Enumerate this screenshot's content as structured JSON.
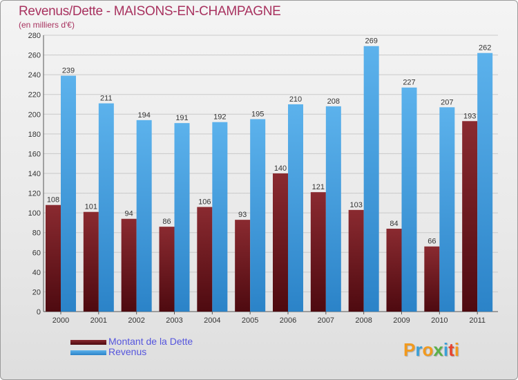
{
  "title": "Revenus/Dette - MAISONS-EN-CHAMPAGNE",
  "subtitle": "(en milliers d'€)",
  "chart_data": {
    "type": "bar",
    "title": "Revenus/Dette - MAISONS-EN-CHAMPAGNE",
    "ylabel": "(en milliers d'€)",
    "xlabel": "",
    "categories": [
      "2000",
      "2001",
      "2002",
      "2003",
      "2004",
      "2005",
      "2006",
      "2007",
      "2008",
      "2009",
      "2010",
      "2011"
    ],
    "series": [
      {
        "name": "Montant de la Dette",
        "color": "#7a1e25",
        "values": [
          108,
          101,
          94,
          86,
          106,
          93,
          140,
          121,
          103,
          84,
          66,
          193
        ]
      },
      {
        "name": "Revenus",
        "color": "#3d99dd",
        "values": [
          239,
          211,
          194,
          191,
          192,
          195,
          210,
          208,
          269,
          227,
          207,
          262
        ]
      }
    ],
    "ylim": [
      0,
      280
    ],
    "yticks": [
      0,
      20,
      40,
      60,
      80,
      100,
      120,
      140,
      160,
      180,
      200,
      220,
      240,
      260,
      280
    ],
    "grid": true,
    "legend": "bottom-left"
  },
  "legend": [
    {
      "label": "Montant de la Dette",
      "color": "#7a1e25"
    },
    {
      "label": "Revenus",
      "color": "#3d99dd"
    }
  ],
  "logo": {
    "letters": [
      "P",
      "r",
      "o",
      "x",
      "i",
      "t",
      "i"
    ],
    "colors": [
      "#f29a1e",
      "#3aa0d8",
      "#f29a1e",
      "#5ab04a",
      "#3aa0d8",
      "#e8432e",
      "#f29a1e"
    ]
  }
}
